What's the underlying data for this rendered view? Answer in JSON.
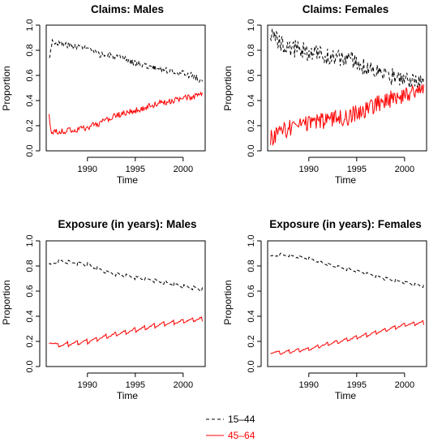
{
  "colors": {
    "young": "#000000",
    "old": "#ff0000"
  },
  "legend": [
    {
      "label": "15–44",
      "color": "#000000",
      "dash": "4,3"
    },
    {
      "label": "45–64",
      "color": "#ff0000",
      "dash": ""
    }
  ],
  "chart_data": [
    {
      "type": "line",
      "title": "Claims: Males",
      "xlabel": "Time",
      "ylabel": "Proportion",
      "xlim": [
        1985.7,
        2002.3
      ],
      "ylim": [
        0,
        1
      ],
      "xticks": [
        1990,
        1995,
        2000
      ],
      "yticks": [
        0.0,
        0.2,
        0.4,
        0.6,
        0.8,
        1.0
      ],
      "x_range": [
        1986,
        2002
      ],
      "series": [
        {
          "name": "15–44",
          "style": "dashed-black",
          "anchors": [
            [
              1986,
              0.73
            ],
            [
              1986.3,
              0.87
            ],
            [
              1987,
              0.86
            ],
            [
              1988,
              0.84
            ],
            [
              1989,
              0.83
            ],
            [
              1990,
              0.82
            ],
            [
              1991,
              0.77
            ],
            [
              1993,
              0.75
            ],
            [
              1995,
              0.7
            ],
            [
              1997,
              0.66
            ],
            [
              1999,
              0.63
            ],
            [
              2001,
              0.6
            ],
            [
              2002,
              0.55
            ]
          ],
          "noise": 0.025
        },
        {
          "name": "45–64",
          "style": "solid-red",
          "anchors": [
            [
              1986,
              0.28
            ],
            [
              1986.2,
              0.15
            ],
            [
              1987,
              0.15
            ],
            [
              1988,
              0.16
            ],
            [
              1989,
              0.17
            ],
            [
              1990,
              0.19
            ],
            [
              1991,
              0.21
            ],
            [
              1993,
              0.28
            ],
            [
              1995,
              0.32
            ],
            [
              1997,
              0.37
            ],
            [
              1999,
              0.4
            ],
            [
              2001,
              0.43
            ],
            [
              2002,
              0.45
            ]
          ],
          "noise": 0.025
        }
      ]
    },
    {
      "type": "line",
      "title": "Claims: Females",
      "xlabel": "Time",
      "ylabel": "Proportion",
      "xlim": [
        1985.7,
        2002.3
      ],
      "ylim": [
        0,
        1
      ],
      "xticks": [
        1990,
        1995,
        2000
      ],
      "yticks": [
        0.0,
        0.2,
        0.4,
        0.6,
        0.8,
        1.0
      ],
      "x_range": [
        1986,
        2002
      ],
      "series": [
        {
          "name": "15–44",
          "style": "dashed-black",
          "anchors": [
            [
              1986,
              0.92
            ],
            [
              1987,
              0.85
            ],
            [
              1988,
              0.8
            ],
            [
              1989,
              0.82
            ],
            [
              1990,
              0.78
            ],
            [
              1991,
              0.77
            ],
            [
              1992,
              0.75
            ],
            [
              1994,
              0.73
            ],
            [
              1995,
              0.71
            ],
            [
              1996,
              0.66
            ],
            [
              1997,
              0.65
            ],
            [
              1998,
              0.6
            ],
            [
              2000,
              0.58
            ],
            [
              2001,
              0.55
            ],
            [
              2002,
              0.52
            ]
          ],
          "noise": 0.07
        },
        {
          "name": "45–64",
          "style": "solid-red",
          "anchors": [
            [
              1986,
              0.1
            ],
            [
              1987,
              0.15
            ],
            [
              1988,
              0.18
            ],
            [
              1989,
              0.2
            ],
            [
              1990,
              0.22
            ],
            [
              1991,
              0.23
            ],
            [
              1992,
              0.24
            ],
            [
              1994,
              0.27
            ],
            [
              1995,
              0.3
            ],
            [
              1996,
              0.34
            ],
            [
              1997,
              0.37
            ],
            [
              1998,
              0.4
            ],
            [
              2000,
              0.45
            ],
            [
              2001,
              0.48
            ],
            [
              2002,
              0.5
            ]
          ],
          "noise": 0.07
        }
      ]
    },
    {
      "type": "line",
      "title": "Exposure (in years): Males",
      "xlabel": "Time",
      "ylabel": "Proportion",
      "xlim": [
        1985.7,
        2002.3
      ],
      "ylim": [
        0,
        1
      ],
      "xticks": [
        1990,
        1995,
        2000
      ],
      "yticks": [
        0.0,
        0.2,
        0.4,
        0.6,
        0.8,
        1.0
      ],
      "x_range": [
        1986,
        2002
      ],
      "series": [
        {
          "name": "15–44",
          "style": "dashed-black",
          "anchors": [
            [
              1986,
              0.8
            ],
            [
              1987,
              0.84
            ],
            [
              1990,
              0.81
            ],
            [
              1992,
              0.75
            ],
            [
              1995,
              0.71
            ],
            [
              1998,
              0.67
            ],
            [
              2000,
              0.64
            ],
            [
              2002,
              0.61
            ]
          ],
          "noise": 0.005,
          "sawtooth": 0.03
        },
        {
          "name": "45–64",
          "style": "solid-red",
          "anchors": [
            [
              1986,
              0.2
            ],
            [
              1987,
              0.17
            ],
            [
              1990,
              0.2
            ],
            [
              1992,
              0.24
            ],
            [
              1995,
              0.29
            ],
            [
              1998,
              0.34
            ],
            [
              2000,
              0.36
            ],
            [
              2002,
              0.38
            ]
          ],
          "noise": 0.005,
          "sawtooth": 0.035
        }
      ]
    },
    {
      "type": "line",
      "title": "Exposure (in years): Females",
      "xlabel": "Time",
      "ylabel": "Proportion",
      "xlim": [
        1985.7,
        2002.3
      ],
      "ylim": [
        0,
        1
      ],
      "xticks": [
        1990,
        1995,
        2000
      ],
      "yticks": [
        0.0,
        0.2,
        0.4,
        0.6,
        0.8,
        1.0
      ],
      "x_range": [
        1986,
        2002
      ],
      "series": [
        {
          "name": "15–44",
          "style": "dashed-black",
          "anchors": [
            [
              1986,
              0.87
            ],
            [
              1987,
              0.89
            ],
            [
              1990,
              0.86
            ],
            [
              1992,
              0.81
            ],
            [
              1995,
              0.76
            ],
            [
              1998,
              0.7
            ],
            [
              2000,
              0.67
            ],
            [
              2002,
              0.64
            ]
          ],
          "noise": 0.004,
          "sawtooth": 0.025
        },
        {
          "name": "45–64",
          "style": "solid-red",
          "anchors": [
            [
              1986,
              0.12
            ],
            [
              1987,
              0.11
            ],
            [
              1990,
              0.14
            ],
            [
              1992,
              0.18
            ],
            [
              1995,
              0.23
            ],
            [
              1998,
              0.29
            ],
            [
              2000,
              0.33
            ],
            [
              2002,
              0.35
            ]
          ],
          "noise": 0.004,
          "sawtooth": 0.03
        }
      ]
    }
  ]
}
